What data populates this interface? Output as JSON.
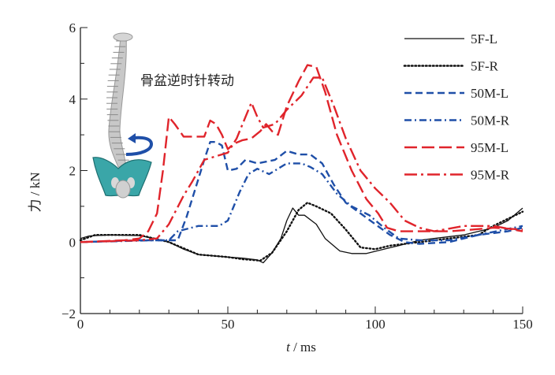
{
  "chart_data": {
    "type": "line",
    "title": "",
    "annotation": "骨盆逆时针转动",
    "xlabel_italic": "t",
    "xlabel_unit": " / ms",
    "ylabel": "力 / kN",
    "xlim": [
      0,
      150
    ],
    "ylim": [
      -2,
      6
    ],
    "xticks": [
      0,
      50,
      100,
      150
    ],
    "yticks": [
      -2,
      0,
      2,
      4,
      6
    ],
    "grid": false,
    "legend_position": "top-right",
    "series": [
      {
        "name": "5F-L",
        "color": "#111111",
        "style": "solid",
        "x": [
          0,
          3,
          10,
          20,
          25,
          30,
          35,
          40,
          50,
          55,
          60,
          62,
          65,
          68,
          70,
          72,
          74,
          76,
          80,
          83,
          88,
          92,
          97,
          103,
          108,
          115,
          120,
          130,
          140,
          145,
          150
        ],
        "y": [
          0.1,
          0.17,
          0.2,
          0.18,
          0.1,
          0.0,
          -0.2,
          -0.35,
          -0.42,
          -0.45,
          -0.5,
          -0.58,
          -0.3,
          0.1,
          0.6,
          0.95,
          0.75,
          0.75,
          0.5,
          0.1,
          -0.25,
          -0.32,
          -0.32,
          -0.2,
          -0.1,
          0.05,
          0.1,
          0.2,
          0.4,
          0.6,
          0.95
        ]
      },
      {
        "name": "5F-R",
        "color": "#111111",
        "style": "dotted",
        "x": [
          0,
          5,
          20,
          30,
          40,
          50,
          55,
          61,
          65,
          70,
          74,
          77,
          80,
          85,
          90,
          95,
          100,
          105,
          115,
          125,
          135,
          140,
          150
        ],
        "y": [
          0.05,
          0.2,
          0.2,
          0.0,
          -0.35,
          -0.42,
          -0.48,
          -0.52,
          -0.3,
          0.3,
          0.9,
          1.1,
          1.0,
          0.8,
          0.35,
          -0.15,
          -0.2,
          -0.1,
          0.0,
          0.1,
          0.2,
          0.45,
          0.85
        ]
      },
      {
        "name": "50M-L",
        "color": "#1f4fa8",
        "style": "dashed",
        "x": [
          0,
          20,
          28,
          33,
          36,
          39,
          42,
          44,
          46,
          48,
          50,
          53,
          56,
          60,
          63,
          66,
          70,
          74,
          78,
          82,
          86,
          90,
          95,
          100,
          105,
          110,
          115,
          125,
          135,
          145,
          150
        ],
        "y": [
          0,
          0.05,
          0.05,
          0.05,
          0.7,
          1.5,
          2.3,
          2.8,
          2.8,
          2.7,
          2.0,
          2.05,
          2.3,
          2.2,
          2.25,
          2.3,
          2.55,
          2.45,
          2.45,
          2.2,
          1.6,
          1.1,
          0.8,
          0.5,
          0.2,
          0.0,
          -0.05,
          0.0,
          0.2,
          0.3,
          0.4
        ]
      },
      {
        "name": "50M-R",
        "color": "#1f4fa8",
        "style": "dashdot",
        "x": [
          0,
          25,
          30,
          33,
          40,
          47,
          50,
          54,
          57,
          60,
          64,
          70,
          75,
          78,
          82,
          87,
          92,
          98,
          103,
          108,
          115,
          125,
          135,
          150
        ],
        "y": [
          0,
          0.05,
          0.05,
          0.3,
          0.45,
          0.45,
          0.6,
          1.4,
          1.9,
          2.05,
          1.9,
          2.2,
          2.2,
          2.1,
          1.9,
          1.35,
          1.0,
          0.75,
          0.4,
          0.1,
          0.05,
          0.05,
          0.2,
          0.45
        ]
      },
      {
        "name": "95M-L",
        "color": "#e0242b",
        "style": "longdash",
        "x": [
          0,
          15,
          20,
          23,
          26,
          28,
          30,
          32,
          35,
          38,
          42,
          44,
          46,
          48,
          50,
          52,
          55,
          58,
          61,
          63,
          65,
          67,
          70,
          74,
          77,
          80,
          83,
          87,
          92,
          97,
          101,
          104,
          108,
          115,
          125,
          133,
          140,
          150
        ],
        "y": [
          0,
          0.05,
          0.1,
          0.3,
          0.8,
          2.0,
          3.5,
          3.3,
          2.95,
          2.95,
          2.95,
          3.4,
          3.3,
          3.0,
          2.6,
          2.75,
          2.85,
          2.9,
          3.1,
          3.3,
          3.1,
          3.0,
          3.8,
          4.5,
          4.95,
          4.9,
          4.2,
          3.0,
          2.0,
          1.2,
          0.8,
          0.4,
          0.3,
          0.3,
          0.3,
          0.35,
          0.4,
          0.35
        ]
      },
      {
        "name": "95M-R",
        "color": "#e0242b",
        "style": "longdashdot",
        "x": [
          0,
          20,
          26,
          30,
          35,
          38,
          42,
          46,
          50,
          53,
          56,
          58,
          60,
          62,
          66,
          70,
          75,
          79,
          82,
          86,
          90,
          95,
          100,
          105,
          110,
          115,
          120,
          130,
          140,
          150
        ],
        "y": [
          0,
          0.05,
          0.1,
          0.5,
          1.3,
          1.7,
          2.3,
          2.4,
          2.5,
          2.9,
          3.5,
          3.9,
          3.5,
          3.2,
          3.3,
          3.7,
          4.1,
          4.6,
          4.6,
          3.8,
          2.9,
          2.0,
          1.5,
          1.1,
          0.6,
          0.4,
          0.3,
          0.45,
          0.45,
          0.3
        ]
      }
    ]
  }
}
